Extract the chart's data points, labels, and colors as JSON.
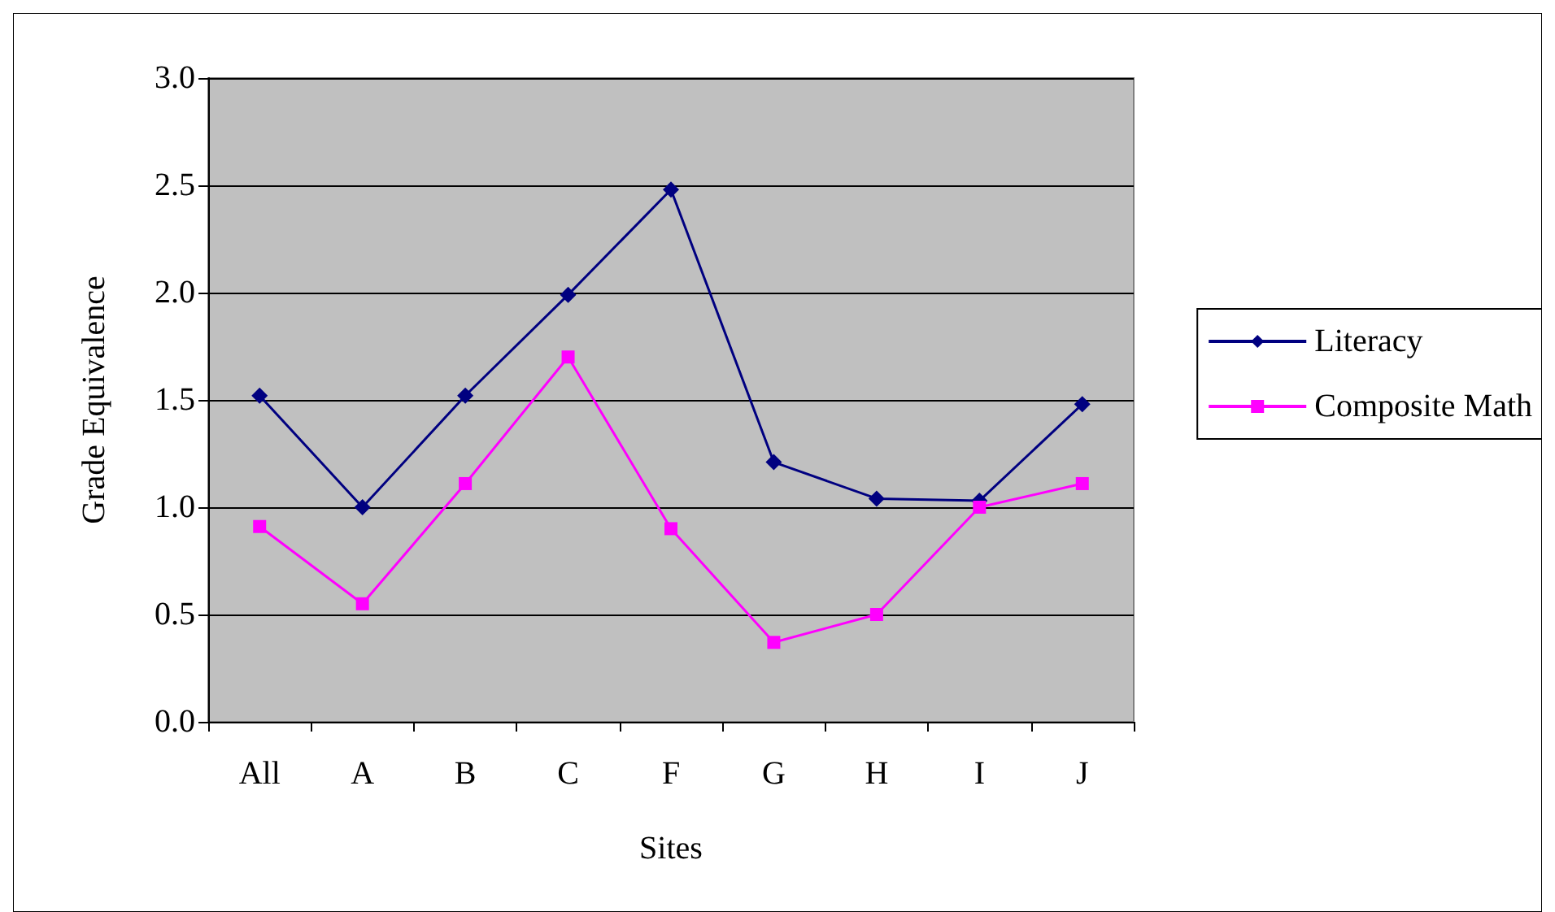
{
  "chart_data": {
    "type": "line",
    "xlabel": "Sites",
    "ylabel": "Grade Equivalence",
    "categories": [
      "All",
      "A",
      "B",
      "C",
      "F",
      "G",
      "H",
      "I",
      "J"
    ],
    "series": [
      {
        "name": "Literacy",
        "color": "#000080",
        "marker": "diamond",
        "values": [
          1.52,
          1.0,
          1.52,
          1.99,
          2.48,
          1.21,
          1.04,
          1.03,
          1.48
        ]
      },
      {
        "name": "Composite Math",
        "color": "#ff00ff",
        "marker": "square",
        "values": [
          0.91,
          0.55,
          1.11,
          1.7,
          0.9,
          0.37,
          0.5,
          1.0,
          1.11
        ]
      }
    ],
    "ylim": [
      0,
      3
    ],
    "yticks": [
      {
        "value": 0,
        "label": "0.0"
      },
      0.5,
      {
        "value": 1,
        "label": "1.0"
      },
      1.5,
      {
        "value": 2,
        "label": "2.0"
      },
      2.5,
      {
        "value": 3,
        "label": "3.0"
      }
    ],
    "grid": "y",
    "legend": "right"
  }
}
